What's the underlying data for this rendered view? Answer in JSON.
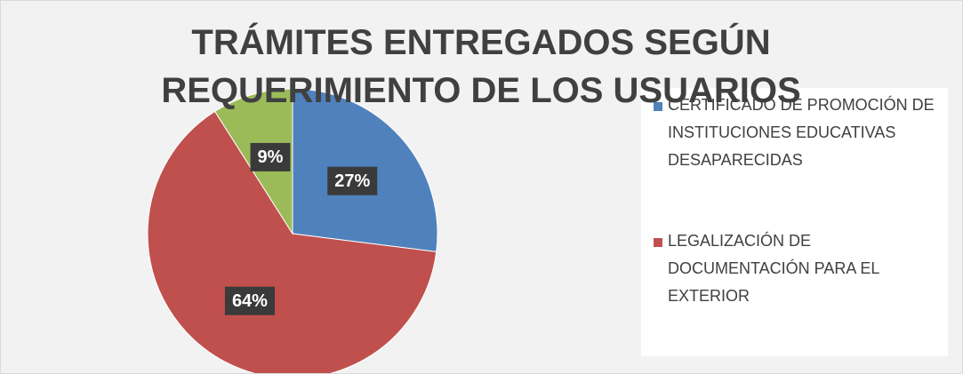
{
  "chart_data": {
    "type": "pie",
    "title": "TRÁMITES ENTREGADOS SEGÚN REQUERIMIENTO DE LOS USUARIOS",
    "categories": [
      "CERTIFICADO DE PROMOCIÓN DE INSTITUCIONES EDUCATIVAS DESAPARECIDAS",
      "LEGALIZACIÓN DE DOCUMENTACIÓN PARA EL EXTERIOR",
      null
    ],
    "values": [
      27,
      64,
      9
    ],
    "value_labels": [
      "27%",
      "64%",
      "9%"
    ],
    "colors": [
      "#4f81bd",
      "#c0504d",
      "#9bbb59"
    ]
  }
}
